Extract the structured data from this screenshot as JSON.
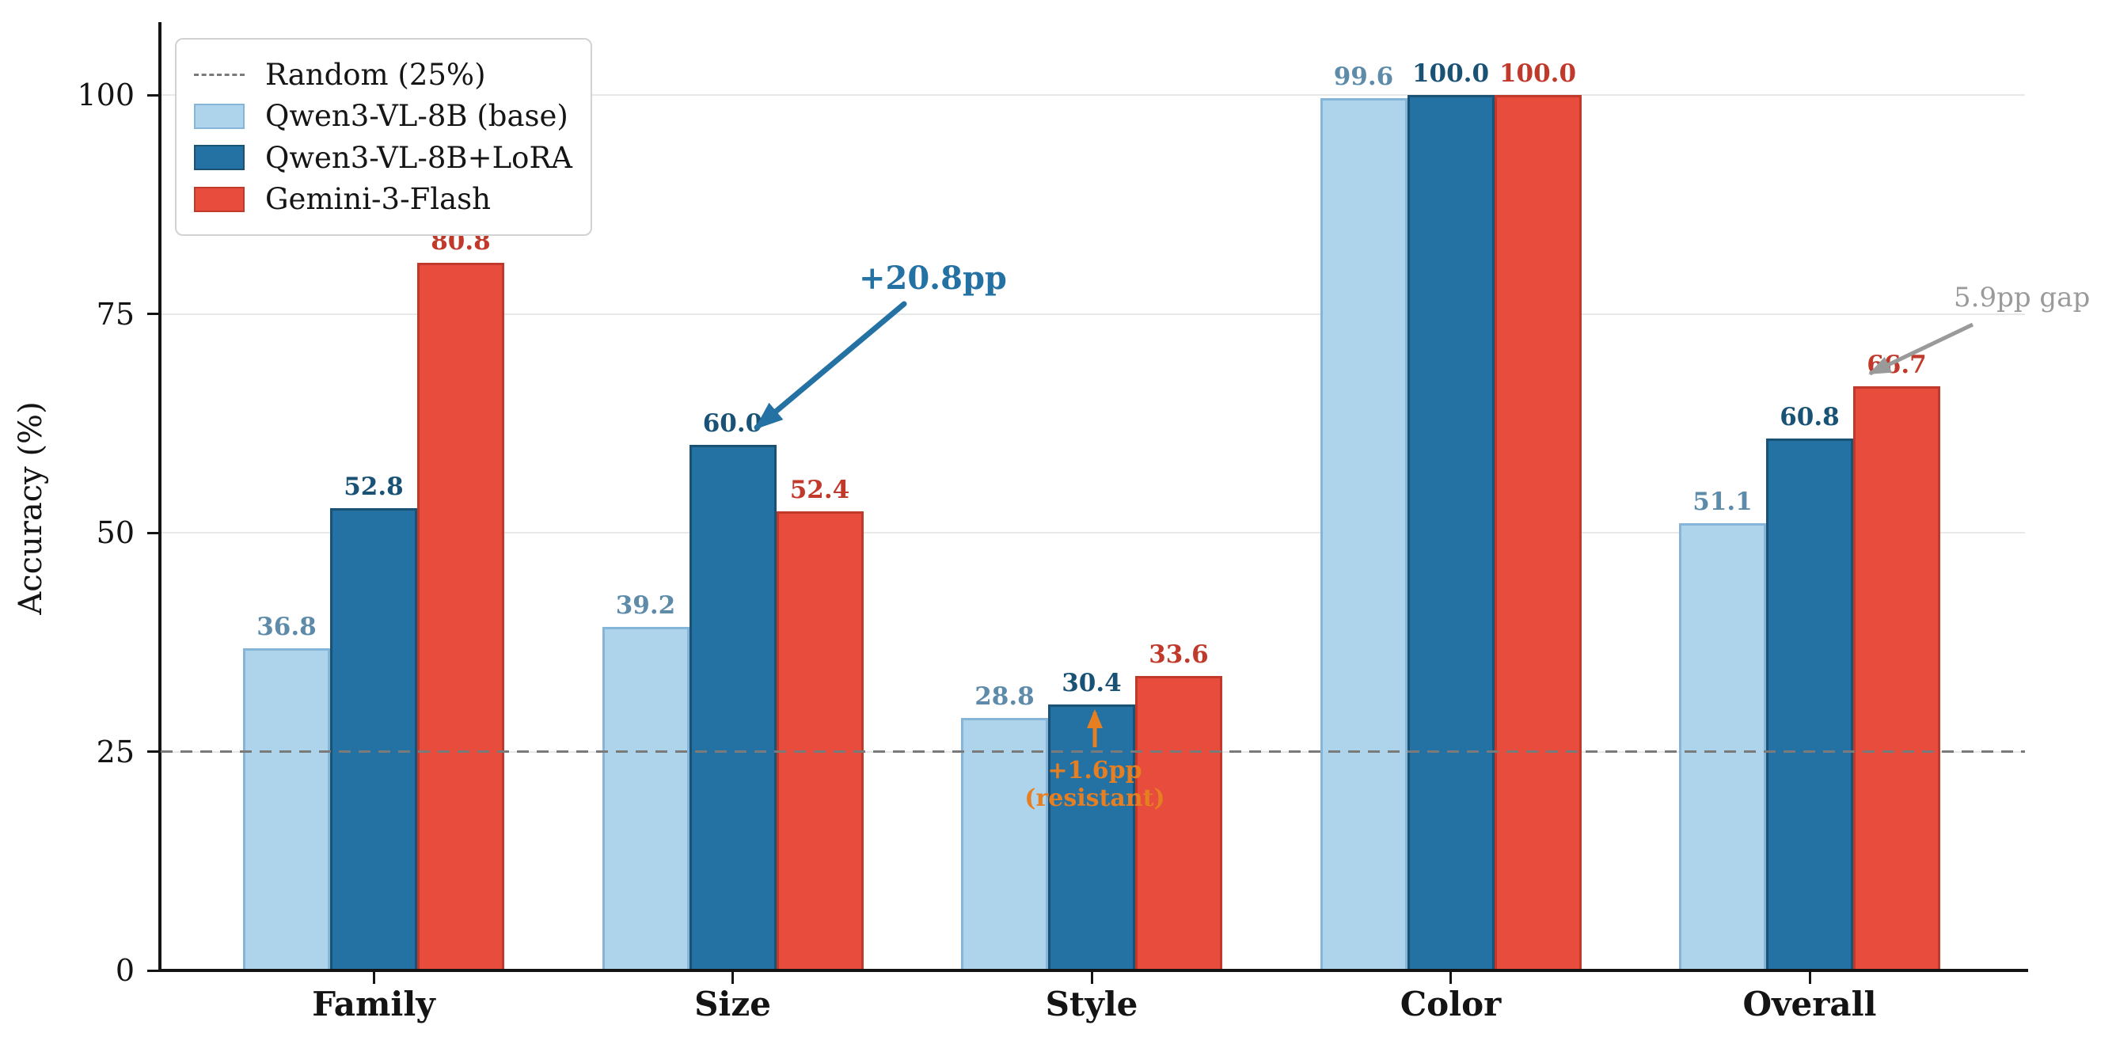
{
  "chart_data": {
    "type": "bar",
    "title": "",
    "ylabel": "Accuracy (%)",
    "xlabel": "",
    "ylim": [
      0,
      108
    ],
    "yticks": [
      0,
      25,
      50,
      75,
      100
    ],
    "grid": "horizontal-light",
    "legend_position": "upper-left",
    "categories": [
      "Family",
      "Size",
      "Style",
      "Color",
      "Overall"
    ],
    "series": [
      {
        "name": "Qwen3-VL-8B (base)",
        "fill": "#AED4EC",
        "edge": "#85B5D8",
        "label_color": "#5D8BA9",
        "values": [
          36.8,
          39.2,
          28.8,
          99.6,
          51.1
        ]
      },
      {
        "name": "Qwen3-VL-8B+LoRA",
        "fill": "#2471A3",
        "edge": "#1A5276",
        "label_color": "#1A5276",
        "values": [
          52.8,
          60.0,
          30.4,
          100.0,
          60.8
        ]
      },
      {
        "name": "Gemini-3-Flash",
        "fill": "#E74C3C",
        "edge": "#C0392B",
        "label_color": "#C0392B",
        "values": [
          80.8,
          52.4,
          33.6,
          100.0,
          66.7
        ]
      }
    ],
    "random_baseline": {
      "label": "Random (25%)",
      "value": 25,
      "color": "#7A7A7A"
    },
    "annotations": [
      {
        "id": "lora-gain",
        "text": "+20.8pp",
        "color": "#2471A3"
      },
      {
        "id": "style-resistant",
        "lines": [
          "+1.6pp",
          "(resistant)"
        ],
        "color": "#E67E22"
      },
      {
        "id": "flash-gap",
        "text": "5.9pp gap",
        "color": "#9A9A9A"
      }
    ]
  }
}
